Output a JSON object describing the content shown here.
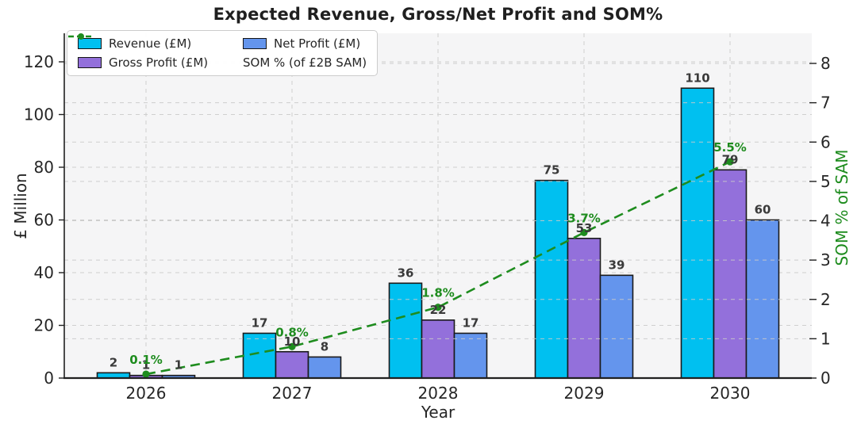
{
  "chart_data": {
    "type": "bar",
    "title": "Expected Revenue, Gross/Net Profit and SOM%",
    "xlabel": "Year",
    "ylabel_left": "£ Million",
    "ylabel_right": "SOM % of SAM",
    "categories": [
      "2026",
      "2027",
      "2028",
      "2029",
      "2030"
    ],
    "series": [
      {
        "key": "revenue",
        "name": "Revenue (£M)",
        "color": "#00c0f0",
        "values": [
          2,
          17,
          36,
          75,
          110
        ]
      },
      {
        "key": "gross-profit",
        "name": "Gross Profit (£M)",
        "color": "#9370db",
        "values": [
          1,
          10,
          22,
          53,
          79
        ]
      },
      {
        "key": "net-profit",
        "name": "Net Profit (£M)",
        "color": "#6495ed",
        "values": [
          1,
          8,
          17,
          39,
          60
        ]
      }
    ],
    "line_series": {
      "key": "som",
      "name": "SOM % (of £2B SAM)",
      "color": "#1e8c1e",
      "axis": "right",
      "style": "dashed-with-dots",
      "values": [
        0.1,
        0.8,
        1.8,
        3.7,
        5.5
      ],
      "point_labels": [
        "0.1%",
        "0.8%",
        "1.8%",
        "3.7%",
        "5.5%"
      ]
    },
    "ylim_left": [
      0,
      120
    ],
    "yticks_left": [
      0,
      20,
      40,
      60,
      80,
      100,
      120
    ],
    "ylim_right": [
      0,
      8
    ],
    "yticks_right": [
      0,
      1,
      2,
      3,
      4,
      5,
      6,
      7,
      8
    ],
    "grid": true,
    "legend_position": "upper-left"
  },
  "colors": {
    "bar_edge": "#1a1a1a",
    "bar_value_label": "#3a3a3a",
    "plot_background": "#f5f5f6",
    "grid_line": "#cfcfcf",
    "grid_line_overlay": "#c9c9c9",
    "spine": "#202020",
    "tick_text": "#262626"
  }
}
